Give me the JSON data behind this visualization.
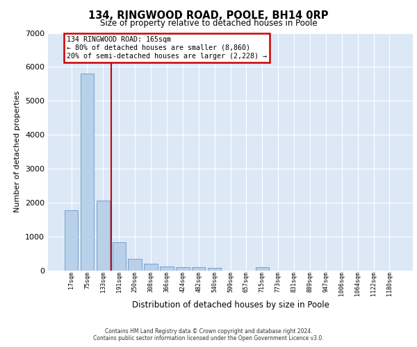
{
  "title": "134, RINGWOOD ROAD, POOLE, BH14 0RP",
  "subtitle": "Size of property relative to detached houses in Poole",
  "xlabel": "Distribution of detached houses by size in Poole",
  "ylabel": "Number of detached properties",
  "bar_color": "#b8d0e8",
  "bar_edge_color": "#6699cc",
  "background_color": "#dce8f5",
  "grid_color": "#ffffff",
  "categories": [
    "17sqm",
    "75sqm",
    "133sqm",
    "191sqm",
    "250sqm",
    "308sqm",
    "366sqm",
    "424sqm",
    "482sqm",
    "540sqm",
    "599sqm",
    "657sqm",
    "715sqm",
    "773sqm",
    "831sqm",
    "889sqm",
    "947sqm",
    "1006sqm",
    "1064sqm",
    "1122sqm",
    "1180sqm"
  ],
  "values": [
    1780,
    5800,
    2060,
    830,
    350,
    195,
    125,
    110,
    95,
    75,
    0,
    0,
    105,
    0,
    0,
    0,
    0,
    0,
    0,
    0,
    0
  ],
  "vline_x": 2.5,
  "vline_color": "#cc0000",
  "annotation_line1": "134 RINGWOOD ROAD: 165sqm",
  "annotation_line2": "← 80% of detached houses are smaller (8,860)",
  "annotation_line3": "20% of semi-detached houses are larger (2,228) →",
  "annotation_box_edgecolor": "#cc0000",
  "ylim": [
    0,
    7000
  ],
  "yticks": [
    0,
    1000,
    2000,
    3000,
    4000,
    5000,
    6000,
    7000
  ],
  "footer_line1": "Contains HM Land Registry data © Crown copyright and database right 2024.",
  "footer_line2": "Contains public sector information licensed under the Open Government Licence v3.0."
}
